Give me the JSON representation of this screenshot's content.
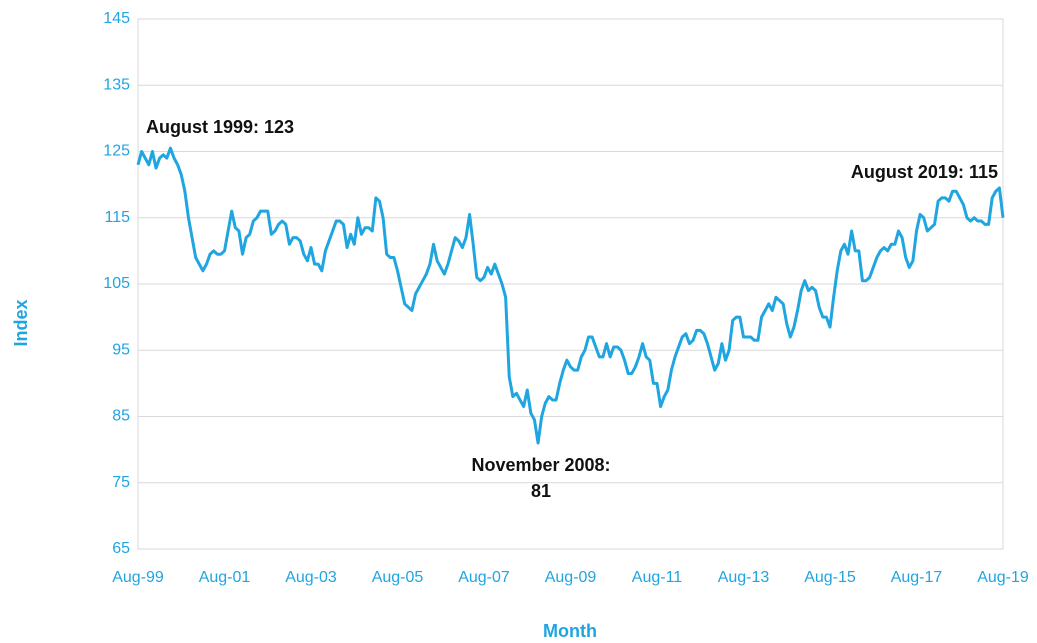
{
  "chart_data": {
    "type": "line",
    "x_label": "Month",
    "y_label": "Index",
    "color": "#1fa5e0",
    "grid": true,
    "ylim": [
      65,
      145
    ],
    "yticks": [
      65,
      75,
      85,
      95,
      105,
      115,
      125,
      135,
      145
    ],
    "annotations": [
      "August 1999: 123",
      [
        "November 2008:",
        "81"
      ],
      "August 2019: 115"
    ],
    "categories": [
      "Aug-99",
      null,
      null,
      null,
      null,
      null,
      null,
      null,
      null,
      null,
      null,
      null,
      null,
      null,
      null,
      null,
      null,
      null,
      null,
      null,
      null,
      null,
      null,
      null,
      "Aug-01",
      null,
      null,
      null,
      null,
      null,
      null,
      null,
      null,
      null,
      null,
      null,
      null,
      null,
      null,
      null,
      null,
      null,
      null,
      null,
      null,
      null,
      null,
      null,
      "Aug-03",
      null,
      null,
      null,
      null,
      null,
      null,
      null,
      null,
      null,
      null,
      null,
      null,
      null,
      null,
      null,
      null,
      null,
      null,
      null,
      null,
      null,
      null,
      null,
      "Aug-05",
      null,
      null,
      null,
      null,
      null,
      null,
      null,
      null,
      null,
      null,
      null,
      null,
      null,
      null,
      null,
      null,
      null,
      null,
      null,
      null,
      null,
      null,
      null,
      "Aug-07",
      null,
      null,
      null,
      null,
      null,
      null,
      null,
      null,
      null,
      null,
      null,
      null,
      null,
      null,
      null,
      null,
      null,
      null,
      null,
      null,
      null,
      null,
      null,
      "Aug-09",
      null,
      null,
      null,
      null,
      null,
      null,
      null,
      null,
      null,
      null,
      null,
      null,
      null,
      null,
      null,
      null,
      null,
      null,
      null,
      null,
      null,
      null,
      null,
      "Aug-11",
      null,
      null,
      null,
      null,
      null,
      null,
      null,
      null,
      null,
      null,
      null,
      null,
      null,
      null,
      null,
      null,
      null,
      null,
      null,
      null,
      null,
      null,
      null,
      "Aug-13",
      null,
      null,
      null,
      null,
      null,
      null,
      null,
      null,
      null,
      null,
      null,
      null,
      null,
      null,
      null,
      null,
      null,
      null,
      null,
      null,
      null,
      null,
      null,
      "Aug-15",
      null,
      null,
      null,
      null,
      null,
      null,
      null,
      null,
      null,
      null,
      null,
      null,
      null,
      null,
      null,
      null,
      null,
      null,
      null,
      null,
      null,
      null,
      null,
      "Aug-17",
      null,
      null,
      null,
      null,
      null,
      null,
      null,
      null,
      null,
      null,
      null,
      null,
      null,
      null,
      null,
      null,
      null,
      null,
      null,
      null,
      null,
      null,
      null,
      "Aug-19"
    ],
    "values": [
      123,
      125,
      124,
      123,
      125,
      122.5,
      124,
      124.5,
      124,
      125.5,
      124,
      123,
      121.5,
      119,
      115,
      112,
      109,
      108,
      107,
      108,
      109.5,
      110,
      109.5,
      109.5,
      110,
      113,
      116,
      113.5,
      113,
      109.5,
      112,
      112.5,
      114.5,
      115,
      116,
      116,
      116,
      112.5,
      113,
      114,
      114.5,
      114,
      111,
      112,
      112,
      111.5,
      109.5,
      108.5,
      110.5,
      108,
      108,
      107,
      110,
      111.5,
      113,
      114.5,
      114.5,
      114,
      110.5,
      112.5,
      111,
      115,
      112.5,
      113.5,
      113.5,
      113,
      118,
      117.5,
      115,
      109.5,
      109,
      109,
      107,
      104.5,
      102,
      101.5,
      101,
      103.5,
      104.5,
      105.5,
      106.5,
      108,
      111,
      108.5,
      107.5,
      106.5,
      108,
      110,
      112,
      111.5,
      110.5,
      112,
      115.5,
      111,
      106,
      105.5,
      106,
      107.5,
      106.5,
      108,
      106.5,
      105,
      103,
      91,
      88,
      88.5,
      87.5,
      86.5,
      89,
      85.5,
      84.5,
      81,
      85,
      87,
      88,
      87.5,
      87.5,
      90,
      92,
      93.5,
      92.5,
      92,
      92,
      94,
      95,
      97,
      97,
      95.5,
      94,
      94,
      96,
      94,
      95.5,
      95.5,
      95,
      93.5,
      91.5,
      91.5,
      92.5,
      94,
      96,
      94,
      93.5,
      90,
      90,
      86.5,
      88,
      89,
      92,
      94,
      95.5,
      97,
      97.5,
      96,
      96.5,
      98,
      98,
      97.5,
      96,
      94,
      92,
      93,
      96,
      93.5,
      95,
      99.5,
      100,
      100,
      97,
      97,
      97,
      96.5,
      96.5,
      100,
      101,
      102,
      101,
      103,
      102.5,
      102,
      99,
      97,
      98.5,
      101,
      104,
      105.5,
      104,
      104.5,
      104,
      101.5,
      100,
      100,
      98.5,
      103,
      107,
      110,
      111,
      109.5,
      113,
      110,
      110,
      105.5,
      105.5,
      106,
      107.5,
      109,
      110,
      110.5,
      110,
      111,
      111,
      113,
      112,
      109,
      107.5,
      108.5,
      113,
      115.5,
      115,
      113,
      113.5,
      114,
      117.5,
      118,
      118,
      117.5,
      119,
      119,
      118,
      117,
      115,
      114.5,
      115,
      114.5,
      114.5,
      114,
      114,
      118,
      119,
      119.5,
      115
    ]
  }
}
